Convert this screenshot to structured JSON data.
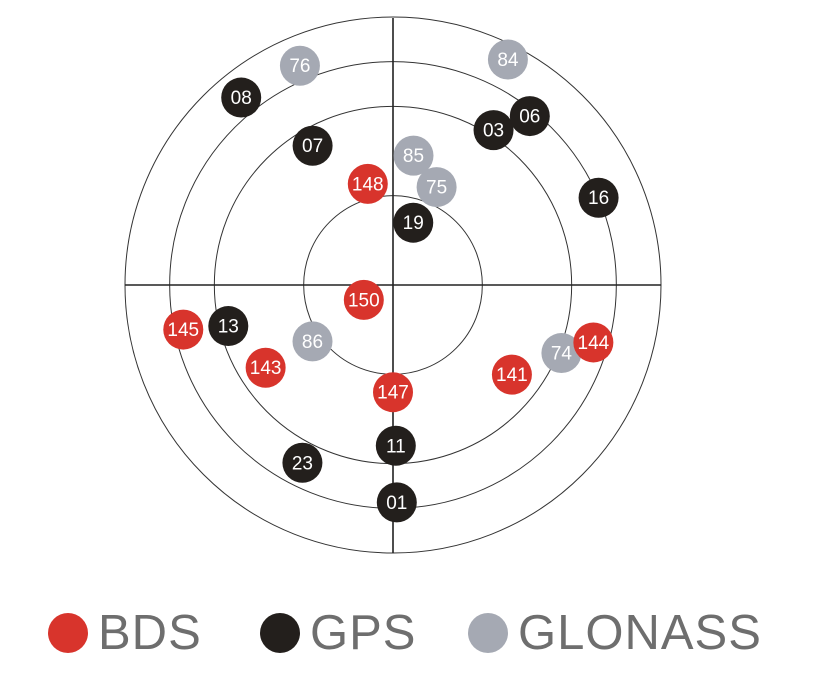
{
  "skyplot": {
    "elevation_rings_deg": [
      0,
      15,
      30,
      60
    ],
    "systems": {
      "BDS": {
        "label": "BDS",
        "color": "#d8342c"
      },
      "GPS": {
        "label": "GPS",
        "color": "#231f1c"
      },
      "GLONASS": {
        "label": "GLONASS",
        "color": "#a5a9b3"
      }
    },
    "satellites": [
      {
        "id": "76",
        "system": "GLONASS",
        "azimuth": 337,
        "elevation": 10
      },
      {
        "id": "84",
        "system": "GLONASS",
        "azimuth": 27,
        "elevation": 5
      },
      {
        "id": "08",
        "system": "GPS",
        "azimuth": 321,
        "elevation": 9
      },
      {
        "id": "03",
        "system": "GPS",
        "azimuth": 33,
        "elevation": 28
      },
      {
        "id": "06",
        "system": "GPS",
        "azimuth": 39,
        "elevation": 17
      },
      {
        "id": "07",
        "system": "GPS",
        "azimuth": 330,
        "elevation": 36
      },
      {
        "id": "85",
        "system": "GLONASS",
        "azimuth": 9,
        "elevation": 46
      },
      {
        "id": "148",
        "system": "BDS",
        "azimuth": 346,
        "elevation": 55
      },
      {
        "id": "75",
        "system": "GLONASS",
        "azimuth": 24,
        "elevation": 54
      },
      {
        "id": "16",
        "system": "GPS",
        "azimuth": 67,
        "elevation": 15
      },
      {
        "id": "19",
        "system": "GPS",
        "azimuth": 18,
        "elevation": 68
      },
      {
        "id": "150",
        "system": "BDS",
        "azimuth": 243,
        "elevation": 79
      },
      {
        "id": "145",
        "system": "BDS",
        "azimuth": 258,
        "elevation": 18
      },
      {
        "id": "13",
        "system": "GPS",
        "azimuth": 256,
        "elevation": 33
      },
      {
        "id": "86",
        "system": "GLONASS",
        "azimuth": 235,
        "elevation": 57
      },
      {
        "id": "74",
        "system": "GLONASS",
        "azimuth": 112,
        "elevation": 29
      },
      {
        "id": "144",
        "system": "BDS",
        "azimuth": 106,
        "elevation": 20
      },
      {
        "id": "143",
        "system": "BDS",
        "azimuth": 237,
        "elevation": 39
      },
      {
        "id": "147",
        "system": "BDS",
        "azimuth": 180,
        "elevation": 54
      },
      {
        "id": "141",
        "system": "BDS",
        "azimuth": 127,
        "elevation": 40
      },
      {
        "id": "11",
        "system": "GPS",
        "azimuth": 179,
        "elevation": 36
      },
      {
        "id": "23",
        "system": "GPS",
        "azimuth": 207,
        "elevation": 23
      },
      {
        "id": "01",
        "system": "GPS",
        "azimuth": 179,
        "elevation": 17
      }
    ]
  },
  "legend": [
    {
      "system": "BDS",
      "label": "BDS"
    },
    {
      "system": "GPS",
      "label": "GPS"
    },
    {
      "system": "GLONASS",
      "label": "GLONASS"
    }
  ]
}
